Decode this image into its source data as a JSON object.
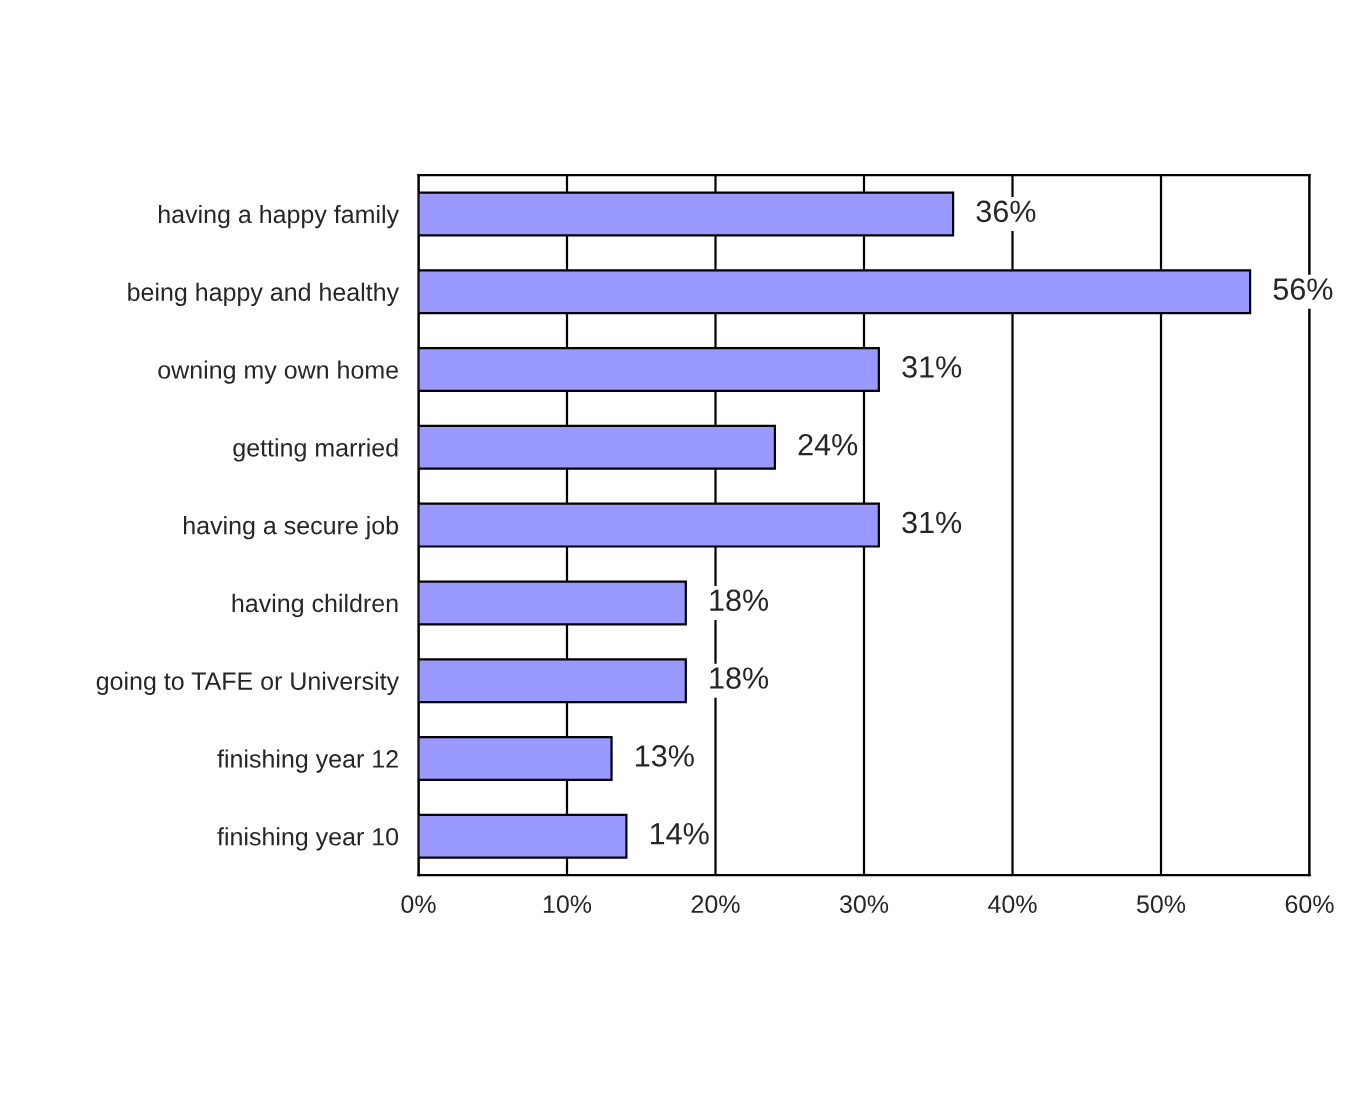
{
  "chart_data": {
    "type": "bar",
    "orientation": "horizontal",
    "categories": [
      "having a happy family",
      "being happy and healthy",
      "owning my own home",
      "getting married",
      "having a secure job",
      "having children",
      "going to TAFE or University",
      "finishing year 12",
      "finishing year 10"
    ],
    "values": [
      36,
      56,
      31,
      24,
      31,
      18,
      18,
      13,
      14
    ],
    "value_labels": [
      "36%",
      "56%",
      "31%",
      "24%",
      "31%",
      "18%",
      "18%",
      "13%",
      "14%"
    ],
    "color": "#9999ff",
    "xlim": [
      0,
      60
    ],
    "xticks": [
      {
        "value": 0,
        "label": "0%"
      },
      {
        "value": 10,
        "label": "10%"
      },
      {
        "value": 20,
        "label": "20%"
      },
      {
        "value": 30,
        "label": "30%"
      },
      {
        "value": 40,
        "label": "40%"
      },
      {
        "value": 50,
        "label": "50%"
      },
      {
        "value": 60,
        "label": "60%"
      }
    ],
    "grid": "x"
  }
}
